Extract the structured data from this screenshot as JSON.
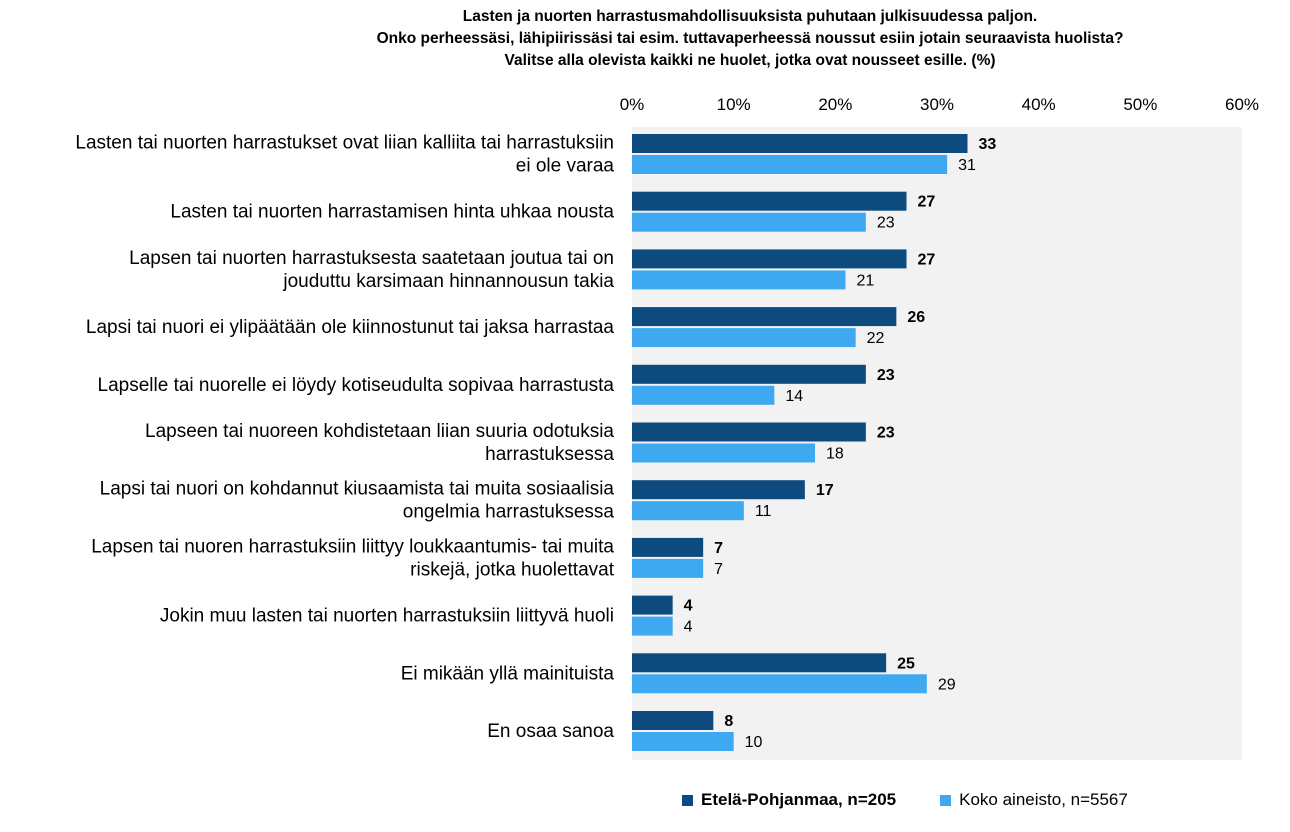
{
  "title": {
    "line1": "Lasten ja nuorten harrastusmahdollisuuksista  puhutaan julkisuudessa  paljon.",
    "line2": "Onko perheessäsi, lähipiirissäsi tai esim. tuttavaperheessä noussut  esiin jotain seuraavista huolista?",
    "line3": "Valitse alla olevista kaikki ne huolet, jotka ovat nousseet  esille. (%)"
  },
  "colors": {
    "series_a": "#0d4a7e",
    "series_b": "#3ea9f0",
    "plot_bg": "#f2f2f2"
  },
  "chart_data": {
    "type": "bar",
    "orientation": "horizontal",
    "xlim": [
      0,
      60
    ],
    "ticks": [
      "0%",
      "10%",
      "20%",
      "30%",
      "40%",
      "50%",
      "60%"
    ],
    "tick_values": [
      0,
      10,
      20,
      30,
      40,
      50,
      60
    ],
    "grid": false,
    "legend_position": "bottom",
    "categories": [
      [
        "Lasten tai nuorten harrastukset ovat liian kalliita tai harrastuksiin",
        "ei ole varaa"
      ],
      [
        "Lasten tai nuorten harrastamisen hinta uhkaa nousta"
      ],
      [
        "Lapsen tai nuorten harrastuksesta saatetaan joutua tai on",
        "jouduttu karsimaan hinnannousun takia"
      ],
      [
        "Lapsi tai nuori ei ylipäätään ole kiinnostunut tai jaksa harrastaa"
      ],
      [
        "Lapselle tai nuorelle ei löydy kotiseudulta sopivaa harrastusta"
      ],
      [
        "Lapseen tai nuoreen kohdistetaan liian suuria odotuksia",
        "harrastuksessa"
      ],
      [
        "Lapsi tai nuori on kohdannut kiusaamista tai muita sosiaalisia",
        "ongelmia harrastuksessa"
      ],
      [
        "Lapsen tai nuoren harrastuksiin liittyy loukkaantumis- tai muita",
        "riskejä, jotka huolettavat"
      ],
      [
        "Jokin muu lasten tai nuorten harrastuksiin liittyvä huoli"
      ],
      [
        "Ei mikään yllä mainituista"
      ],
      [
        "En osaa sanoa"
      ]
    ],
    "series": [
      {
        "name": "Etelä-Pohjanmaa, n=205",
        "values": [
          33,
          27,
          27,
          26,
          23,
          23,
          17,
          7,
          4,
          25,
          8
        ]
      },
      {
        "name": "Koko aineisto, n=5567",
        "values": [
          31,
          23,
          21,
          22,
          14,
          18,
          11,
          7,
          4,
          29,
          10
        ]
      }
    ]
  }
}
